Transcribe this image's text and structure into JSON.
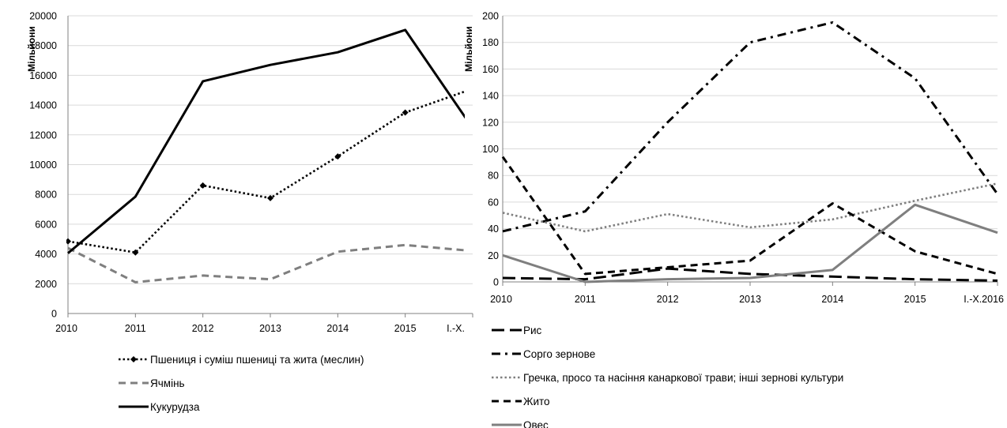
{
  "chart_data": [
    {
      "type": "line",
      "ylabel": "Мільйони",
      "xlabel": "",
      "ylim": [
        0,
        20000
      ],
      "yticks": [
        0,
        2000,
        4000,
        6000,
        8000,
        10000,
        12000,
        14000,
        16000,
        18000,
        20000
      ],
      "categories": [
        "2010",
        "2011",
        "2012",
        "2013",
        "2014",
        "2015",
        "I.-X."
      ],
      "legend_position": "bottom",
      "series": [
        {
          "name": "Пшениця і суміш пшениці та жита (меслин)",
          "values": [
            4850,
            4100,
            8600,
            7750,
            10550,
            13500,
            15100
          ],
          "style": "dotted-diamond",
          "color": "#000000"
        },
        {
          "name": "Ячмінь",
          "values": [
            4400,
            2100,
            2550,
            2300,
            4150,
            4600,
            4200
          ],
          "style": "dashed",
          "color": "#7f7f7f"
        },
        {
          "name": "Кукурудза",
          "values": [
            4050,
            7850,
            15600,
            16700,
            17550,
            19050,
            12450
          ],
          "style": "solid",
          "color": "#000000"
        }
      ]
    },
    {
      "type": "line",
      "ylabel": "Мільйони",
      "xlabel": "",
      "ylim": [
        0,
        200
      ],
      "yticks": [
        0,
        20,
        40,
        60,
        80,
        100,
        120,
        140,
        160,
        180,
        200
      ],
      "categories": [
        "2010",
        "2011",
        "2012",
        "2013",
        "2014",
        "2015",
        "I.-X.2016"
      ],
      "legend_position": "bottom",
      "series": [
        {
          "name": "Рис",
          "values": [
            3,
            2,
            10,
            6,
            4,
            2,
            1
          ],
          "style": "longdash",
          "color": "#000000"
        },
        {
          "name": "Сорго зернове",
          "values": [
            38,
            53,
            120,
            180,
            195,
            153,
            66
          ],
          "style": "dashdot",
          "color": "#000000"
        },
        {
          "name": "Гречка, просо та насіння канаркової трави; інші зернові культури",
          "values": [
            52,
            38,
            51,
            41,
            47,
            61,
            74
          ],
          "style": "dotted",
          "color": "#7f7f7f"
        },
        {
          "name": "Жито",
          "values": [
            94,
            6,
            11,
            16,
            59,
            23,
            6
          ],
          "style": "dashed",
          "color": "#000000"
        },
        {
          "name": "Овес",
          "values": [
            20,
            0,
            2,
            3,
            9,
            58,
            37
          ],
          "style": "solid",
          "color": "#7f7f7f"
        }
      ]
    }
  ]
}
